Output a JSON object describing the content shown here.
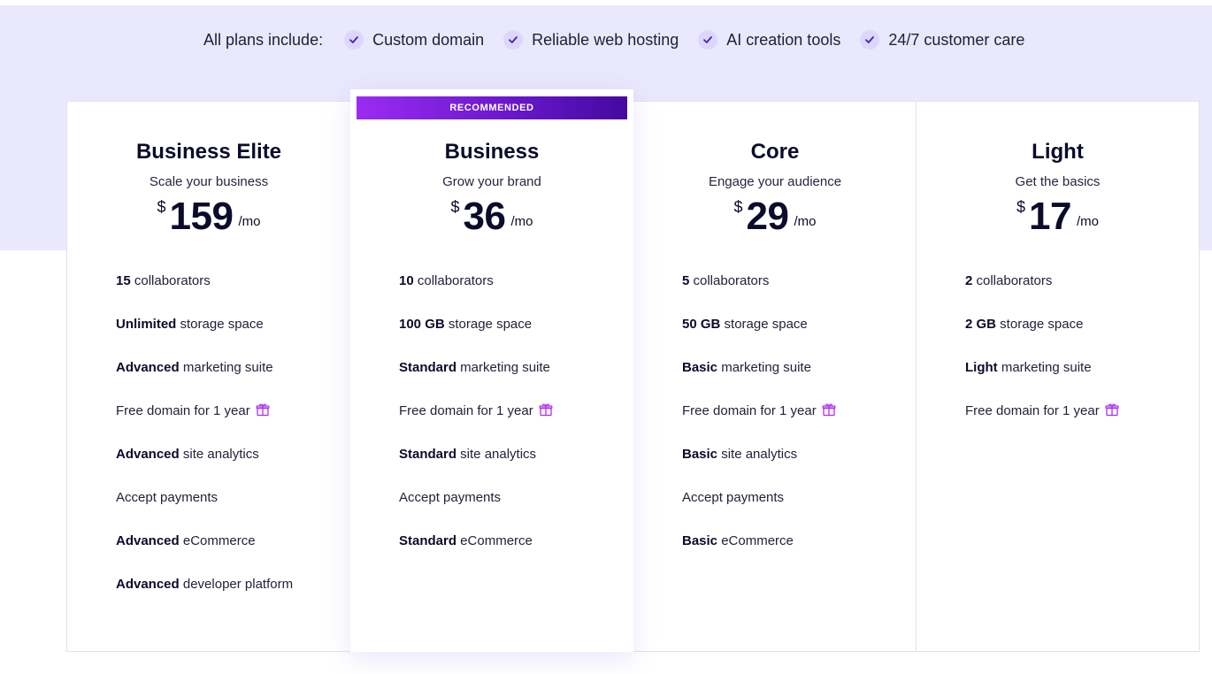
{
  "includes": {
    "lead": "All plans include:",
    "items": [
      "Custom domain",
      "Reliable web hosting",
      "AI creation tools",
      "24/7 customer care"
    ]
  },
  "colors": {
    "accent": "#7b2ff7",
    "band": "#e9e8fd",
    "check_bg": "#dcd7fb"
  },
  "plans": [
    {
      "name": "Business Elite",
      "subtitle": "Scale your business",
      "currency": "$",
      "price": "159",
      "period": "/mo",
      "features": [
        {
          "bold": "15",
          "rest": " collaborators"
        },
        {
          "bold": "Unlimited",
          "rest": " storage space"
        },
        {
          "bold": "Advanced",
          "rest": " marketing suite"
        },
        {
          "bold": "",
          "rest": "Free domain for 1 year",
          "icon": "gift-icon"
        },
        {
          "bold": "Advanced",
          "rest": " site analytics"
        },
        {
          "bold": "",
          "rest": "Accept payments"
        },
        {
          "bold": "Advanced",
          "rest": " eCommerce"
        },
        {
          "bold": "Advanced",
          "rest": " developer platform"
        }
      ]
    },
    {
      "badge": "RECOMMENDED",
      "name": "Business",
      "subtitle": "Grow your brand",
      "currency": "$",
      "price": "36",
      "period": "/mo",
      "features": [
        {
          "bold": "10",
          "rest": " collaborators"
        },
        {
          "bold": "100 GB",
          "rest": " storage space"
        },
        {
          "bold": "Standard",
          "rest": " marketing suite"
        },
        {
          "bold": "",
          "rest": "Free domain for 1 year",
          "icon": "gift-icon"
        },
        {
          "bold": "Standard",
          "rest": " site analytics"
        },
        {
          "bold": "",
          "rest": "Accept payments"
        },
        {
          "bold": "Standard",
          "rest": " eCommerce"
        }
      ]
    },
    {
      "name": "Core",
      "subtitle": "Engage your audience",
      "currency": "$",
      "price": "29",
      "period": "/mo",
      "features": [
        {
          "bold": "5",
          "rest": " collaborators"
        },
        {
          "bold": "50 GB",
          "rest": " storage space"
        },
        {
          "bold": "Basic",
          "rest": " marketing suite"
        },
        {
          "bold": "",
          "rest": "Free domain for 1 year",
          "icon": "gift-icon"
        },
        {
          "bold": "Basic",
          "rest": " site analytics"
        },
        {
          "bold": "",
          "rest": "Accept payments"
        },
        {
          "bold": "Basic",
          "rest": " eCommerce"
        }
      ]
    },
    {
      "name": "Light",
      "subtitle": "Get the basics",
      "currency": "$",
      "price": "17",
      "period": "/mo",
      "features": [
        {
          "bold": "2",
          "rest": " collaborators"
        },
        {
          "bold": "2 GB",
          "rest": " storage space"
        },
        {
          "bold": "Light",
          "rest": " marketing suite"
        },
        {
          "bold": "",
          "rest": "Free domain for 1 year",
          "icon": "gift-icon"
        }
      ]
    }
  ]
}
